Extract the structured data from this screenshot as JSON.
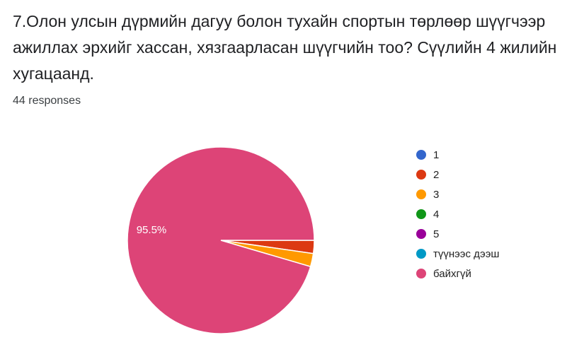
{
  "question": {
    "title": "7.Олон улсын дүрмийн дагуу болон тухайн спортын төрлөөр шүүгчээр ажиллах эрхийг хассан, хязгаарласан шүүгчийн тоо? Сүүлийн 4 жилийн хугацаанд.",
    "responses_label": "44 responses"
  },
  "chart_data": {
    "type": "pie",
    "categories": [
      "1",
      "2",
      "3",
      "4",
      "5",
      "түүнээс дээш",
      "байхгүй"
    ],
    "values": [
      0,
      1,
      1,
      0,
      0,
      0,
      42
    ],
    "colors": [
      "#3366cc",
      "#dc3912",
      "#ff9900",
      "#109618",
      "#990099",
      "#0099c6",
      "#dd4477"
    ],
    "slice_labels": [
      {
        "category": "байхгүй",
        "text": "95.5%"
      }
    ],
    "legend_position": "right"
  }
}
